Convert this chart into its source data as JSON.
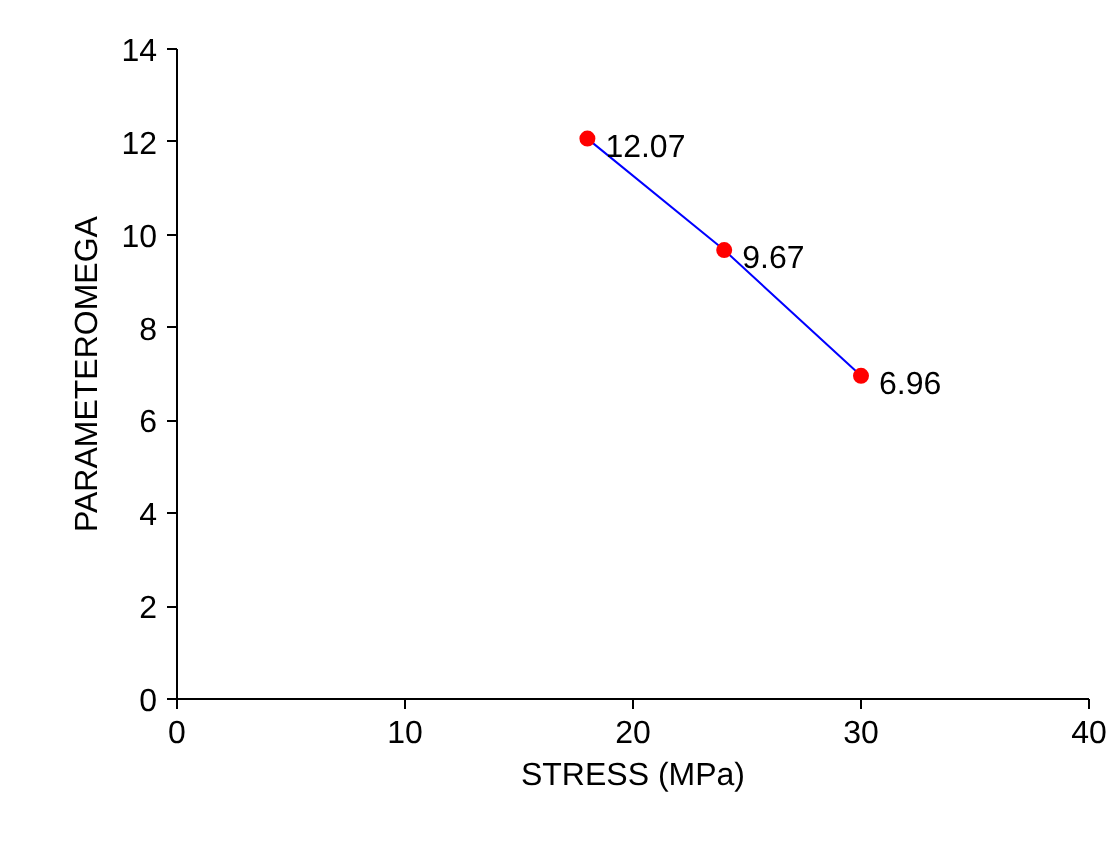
{
  "chart_data": {
    "type": "line",
    "xlabel": "STRESS (MPa)",
    "ylabel": "PARAMETEROMEGA",
    "x": [
      18,
      24,
      30
    ],
    "series": [
      {
        "color": "#0000ff",
        "colors": [
          "#ff0000",
          "#ff0000",
          "#ff0000"
        ],
        "values": [
          12.07,
          9.67,
          6.96
        ]
      }
    ],
    "xlim": [
      0,
      40
    ],
    "xticks": [
      0,
      10,
      20,
      30,
      40
    ],
    "ylim": [
      0,
      14
    ],
    "yticks": [
      0,
      2,
      4,
      6,
      8,
      10,
      12,
      14
    ],
    "data_labels": true,
    "marker": "circle",
    "line_style": "solid",
    "grid": false
  }
}
